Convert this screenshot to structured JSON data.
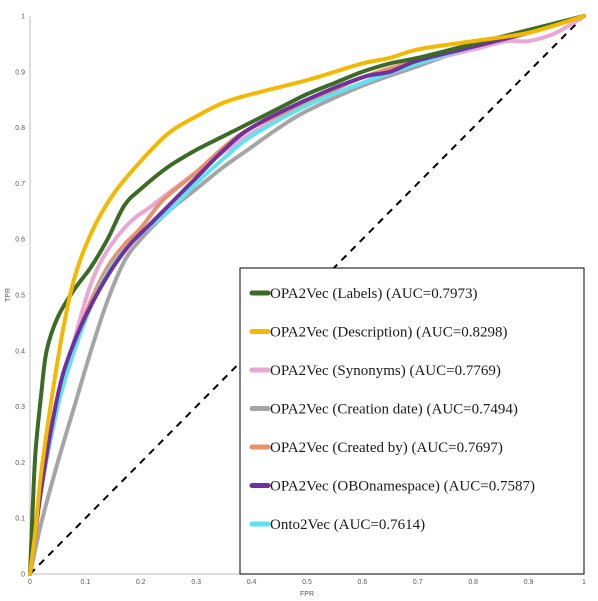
{
  "chart_data": {
    "type": "line",
    "xlabel": "FPR",
    "ylabel": "TPR",
    "xlim": [
      0,
      1
    ],
    "ylim": [
      0,
      1
    ],
    "x_ticks": [
      "0",
      "0.1",
      "0.2",
      "0.3",
      "0.4",
      "0.5",
      "0.6",
      "0.7",
      "0.8",
      "0.9",
      "1"
    ],
    "y_ticks": [
      "0",
      "0.1",
      "0.2",
      "0.3",
      "0.4",
      "0.5",
      "0.6",
      "0.7",
      "0.8",
      "0.9",
      "1"
    ],
    "grid": false,
    "legend_position": "bottom-right",
    "diagonal": {
      "style": "dashed",
      "color": "#000000",
      "points": [
        [
          0,
          0
        ],
        [
          1,
          1
        ]
      ]
    },
    "series": [
      {
        "name": "OPA2Vec (Labels) (AUC=0.7973)",
        "color": "#3b6b24",
        "points": [
          [
            0,
            0
          ],
          [
            0.005,
            0.12
          ],
          [
            0.01,
            0.22
          ],
          [
            0.02,
            0.32
          ],
          [
            0.03,
            0.4
          ],
          [
            0.05,
            0.46
          ],
          [
            0.08,
            0.51
          ],
          [
            0.11,
            0.55
          ],
          [
            0.14,
            0.6
          ],
          [
            0.17,
            0.66
          ],
          [
            0.2,
            0.69
          ],
          [
            0.25,
            0.73
          ],
          [
            0.3,
            0.76
          ],
          [
            0.35,
            0.785
          ],
          [
            0.4,
            0.81
          ],
          [
            0.45,
            0.835
          ],
          [
            0.5,
            0.86
          ],
          [
            0.55,
            0.88
          ],
          [
            0.6,
            0.9
          ],
          [
            0.65,
            0.915
          ],
          [
            0.7,
            0.925
          ],
          [
            0.8,
            0.95
          ],
          [
            0.9,
            0.975
          ],
          [
            1,
            1
          ]
        ]
      },
      {
        "name": "OPA2Vec (Description) (AUC=0.8298)",
        "color": "#f5b800",
        "points": [
          [
            0,
            0
          ],
          [
            0.01,
            0.08
          ],
          [
            0.02,
            0.18
          ],
          [
            0.04,
            0.32
          ],
          [
            0.06,
            0.44
          ],
          [
            0.08,
            0.53
          ],
          [
            0.11,
            0.61
          ],
          [
            0.15,
            0.68
          ],
          [
            0.2,
            0.74
          ],
          [
            0.25,
            0.79
          ],
          [
            0.3,
            0.82
          ],
          [
            0.35,
            0.845
          ],
          [
            0.4,
            0.86
          ],
          [
            0.5,
            0.885
          ],
          [
            0.55,
            0.9
          ],
          [
            0.6,
            0.915
          ],
          [
            0.65,
            0.925
          ],
          [
            0.7,
            0.94
          ],
          [
            0.8,
            0.955
          ],
          [
            0.9,
            0.97
          ],
          [
            1,
            1
          ]
        ]
      },
      {
        "name": "OPA2Vec (Synonyms) (AUC=0.7769)",
        "color": "#eaa7d6",
        "points": [
          [
            0,
            0
          ],
          [
            0.02,
            0.15
          ],
          [
            0.05,
            0.3
          ],
          [
            0.08,
            0.42
          ],
          [
            0.11,
            0.52
          ],
          [
            0.14,
            0.58
          ],
          [
            0.18,
            0.63
          ],
          [
            0.22,
            0.66
          ],
          [
            0.3,
            0.72
          ],
          [
            0.4,
            0.79
          ],
          [
            0.5,
            0.84
          ],
          [
            0.6,
            0.88
          ],
          [
            0.7,
            0.915
          ],
          [
            0.8,
            0.94
          ],
          [
            0.86,
            0.955
          ],
          [
            0.9,
            0.955
          ],
          [
            0.95,
            0.97
          ],
          [
            1,
            1
          ]
        ]
      },
      {
        "name": "OPA2Vec (Creation date) (AUC=0.7494)",
        "color": "#a5a5a5",
        "points": [
          [
            0,
            0
          ],
          [
            0.02,
            0.09
          ],
          [
            0.05,
            0.2
          ],
          [
            0.08,
            0.3
          ],
          [
            0.11,
            0.4
          ],
          [
            0.14,
            0.49
          ],
          [
            0.17,
            0.56
          ],
          [
            0.2,
            0.6
          ],
          [
            0.25,
            0.65
          ],
          [
            0.3,
            0.69
          ],
          [
            0.35,
            0.73
          ],
          [
            0.4,
            0.765
          ],
          [
            0.45,
            0.8
          ],
          [
            0.5,
            0.83
          ],
          [
            0.6,
            0.875
          ],
          [
            0.7,
            0.91
          ],
          [
            0.8,
            0.945
          ],
          [
            0.9,
            0.97
          ],
          [
            1,
            1
          ]
        ]
      },
      {
        "name": "OPA2Vec (Created by) (AUC=0.7697)",
        "color": "#e8916a",
        "points": [
          [
            0,
            0
          ],
          [
            0.02,
            0.16
          ],
          [
            0.05,
            0.3
          ],
          [
            0.08,
            0.41
          ],
          [
            0.11,
            0.49
          ],
          [
            0.14,
            0.55
          ],
          [
            0.17,
            0.59
          ],
          [
            0.2,
            0.62
          ],
          [
            0.24,
            0.67
          ],
          [
            0.3,
            0.72
          ],
          [
            0.35,
            0.765
          ],
          [
            0.4,
            0.8
          ],
          [
            0.5,
            0.845
          ],
          [
            0.6,
            0.89
          ],
          [
            0.7,
            0.92
          ],
          [
            0.8,
            0.945
          ],
          [
            0.9,
            0.97
          ],
          [
            1,
            1
          ]
        ]
      },
      {
        "name": "OPA2Vec (OBOnamespace) (AUC=0.7587)",
        "color": "#7030a0",
        "points": [
          [
            0,
            0
          ],
          [
            0.02,
            0.15
          ],
          [
            0.04,
            0.27
          ],
          [
            0.06,
            0.36
          ],
          [
            0.09,
            0.44
          ],
          [
            0.12,
            0.5
          ],
          [
            0.15,
            0.55
          ],
          [
            0.18,
            0.59
          ],
          [
            0.22,
            0.63
          ],
          [
            0.26,
            0.67
          ],
          [
            0.3,
            0.71
          ],
          [
            0.35,
            0.76
          ],
          [
            0.4,
            0.8
          ],
          [
            0.5,
            0.85
          ],
          [
            0.6,
            0.89
          ],
          [
            0.65,
            0.9
          ],
          [
            0.7,
            0.92
          ],
          [
            0.8,
            0.945
          ],
          [
            0.9,
            0.97
          ],
          [
            1,
            1
          ]
        ]
      },
      {
        "name": "Onto2Vec (AUC=0.7614)",
        "color": "#5ee3f0",
        "points": [
          [
            0,
            0
          ],
          [
            0.02,
            0.15
          ],
          [
            0.05,
            0.3
          ],
          [
            0.08,
            0.4
          ],
          [
            0.11,
            0.48
          ],
          [
            0.14,
            0.54
          ],
          [
            0.17,
            0.58
          ],
          [
            0.2,
            0.61
          ],
          [
            0.25,
            0.65
          ],
          [
            0.3,
            0.7
          ],
          [
            0.35,
            0.745
          ],
          [
            0.4,
            0.785
          ],
          [
            0.5,
            0.84
          ],
          [
            0.6,
            0.88
          ],
          [
            0.7,
            0.915
          ],
          [
            0.8,
            0.945
          ],
          [
            0.9,
            0.97
          ],
          [
            1,
            1
          ]
        ]
      }
    ]
  }
}
